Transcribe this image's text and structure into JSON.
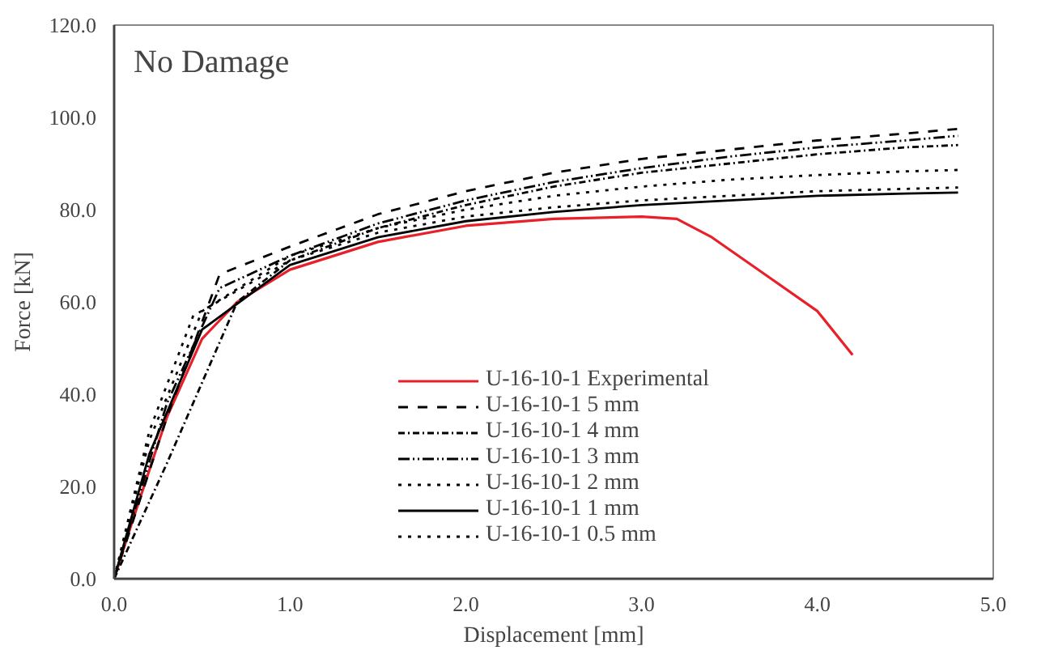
{
  "chart_data": {
    "type": "line",
    "xlabel": "Displacement [mm]",
    "ylabel": "Force [kN]",
    "annotations": [
      "No Damage"
    ],
    "xlim": [
      0,
      5
    ],
    "ylim": [
      0,
      120
    ],
    "xticks": [
      {
        "value": 0,
        "label": "0.0"
      },
      {
        "value": 1,
        "label": "1.0"
      },
      {
        "value": 2,
        "label": "2.0"
      },
      {
        "value": 3,
        "label": "3.0"
      },
      {
        "value": 4,
        "label": "4.0"
      },
      {
        "value": 5,
        "label": "5.0"
      }
    ],
    "yticks": [
      {
        "value": 0,
        "label": "0.0"
      },
      {
        "value": 20,
        "label": "20.0"
      },
      {
        "value": 40,
        "label": "40.0"
      },
      {
        "value": 60,
        "label": "60.0"
      },
      {
        "value": 80,
        "label": "80.0"
      },
      {
        "value": 100,
        "label": "100.0"
      },
      {
        "value": 120,
        "label": "120.0"
      }
    ],
    "grid": false,
    "legend": "bottom",
    "marker": "none",
    "series": [
      {
        "name": "U-16-10-1 Experimental",
        "color": "#e8202a",
        "line_style": "solid",
        "x": [
          0,
          0.1,
          0.3,
          0.5,
          0.7,
          1.0,
          1.5,
          2.0,
          2.5,
          3.0,
          3.2,
          3.4,
          3.7,
          4.0,
          4.2
        ],
        "values": [
          0,
          12,
          35,
          52,
          60,
          67,
          73,
          76.5,
          78,
          78.5,
          78,
          74,
          66,
          58,
          48.5
        ]
      },
      {
        "name": "U-16-10-1 5 mm",
        "color": "#000000",
        "line_style": "dashed",
        "x": [
          0,
          0.3,
          0.6,
          1.0,
          1.5,
          2.0,
          2.5,
          3.0,
          3.5,
          4.0,
          4.5,
          4.8
        ],
        "values": [
          0,
          35,
          66,
          72,
          79,
          84,
          88,
          91,
          93,
          95,
          96.5,
          97.5
        ]
      },
      {
        "name": "U-16-10-1 4 mm",
        "color": "#000000",
        "line_style": "dashdot",
        "x": [
          0,
          0.3,
          0.7,
          1.0,
          1.5,
          2.0,
          2.5,
          3.0,
          3.5,
          4.0,
          4.5,
          4.8
        ],
        "values": [
          0,
          25,
          60,
          69,
          76,
          81,
          85,
          88,
          90,
          92,
          93.5,
          94
        ]
      },
      {
        "name": "U-16-10-1 3 mm",
        "color": "#000000",
        "line_style": "dashdotdot",
        "x": [
          0,
          0.3,
          0.6,
          1.0,
          1.5,
          2.0,
          2.5,
          3.0,
          3.5,
          4.0,
          4.5,
          4.8
        ],
        "values": [
          0,
          38,
          63,
          70,
          77,
          82,
          86,
          89,
          91.5,
          93.5,
          95,
          96
        ]
      },
      {
        "name": "U-16-10-1 2 mm",
        "color": "#000000",
        "line_style": "dotted",
        "x": [
          0,
          0.2,
          0.5,
          1.0,
          1.5,
          2.0,
          2.5,
          3.0,
          3.5,
          4.0,
          4.5,
          4.8
        ],
        "values": [
          0,
          30,
          58,
          70,
          76,
          80,
          83,
          85,
          86.5,
          87.5,
          88.3,
          88.6
        ]
      },
      {
        "name": "U-16-10-1 1 mm",
        "color": "#000000",
        "line_style": "solid",
        "x": [
          0,
          0.2,
          0.5,
          1.0,
          1.5,
          2.0,
          2.5,
          3.0,
          3.5,
          4.0,
          4.5,
          4.8
        ],
        "values": [
          0,
          27,
          54,
          68,
          74,
          77.5,
          79.5,
          81,
          82,
          83,
          83.5,
          83.7
        ]
      },
      {
        "name": "U-16-10-1 0.5 mm",
        "color": "#000000",
        "line_style": "dotted",
        "x": [
          0,
          0.2,
          0.45,
          1.0,
          1.5,
          2.0,
          2.5,
          3.0,
          3.5,
          4.0,
          4.5,
          4.8
        ],
        "values": [
          0,
          32,
          57,
          69,
          75,
          78.5,
          80.5,
          82,
          83,
          84,
          84.5,
          84.8
        ]
      }
    ]
  }
}
